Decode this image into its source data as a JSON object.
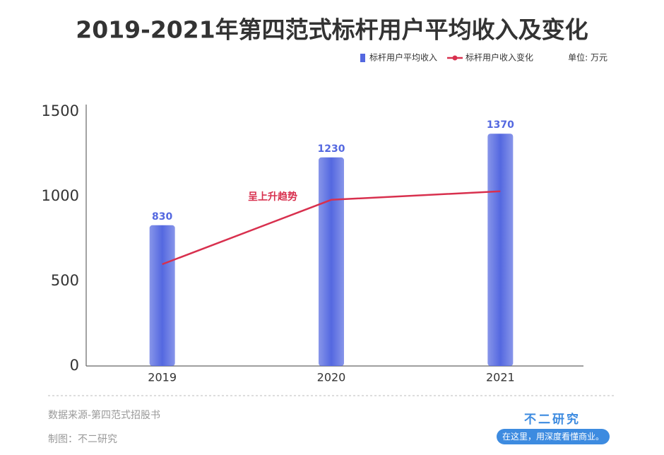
{
  "chart_data": {
    "type": "bar",
    "title": "2019-2021年第四范式标杆用户平均收入及变化",
    "unit": "单位: 万元",
    "categories": [
      "2019",
      "2020",
      "2021"
    ],
    "series": [
      {
        "name": "标杆用户平均收入",
        "type": "bar",
        "color": "#5468e0",
        "values": [
          830,
          1230,
          1370
        ]
      },
      {
        "name": "标杆用户收入变化",
        "type": "line",
        "color": "#d8304e",
        "values": [
          600,
          980,
          1030
        ]
      }
    ],
    "annotation": "呈上升趋势",
    "ylim": [
      0,
      1500
    ],
    "yticks": [
      0,
      500,
      1000,
      1500
    ],
    "grid": false,
    "legend": "top-right",
    "source": "数据来源-第四范式招股书",
    "credit": "制图：不二研究",
    "brand": "不二研究",
    "slogan": "在这里，用深度看懂商业。"
  }
}
